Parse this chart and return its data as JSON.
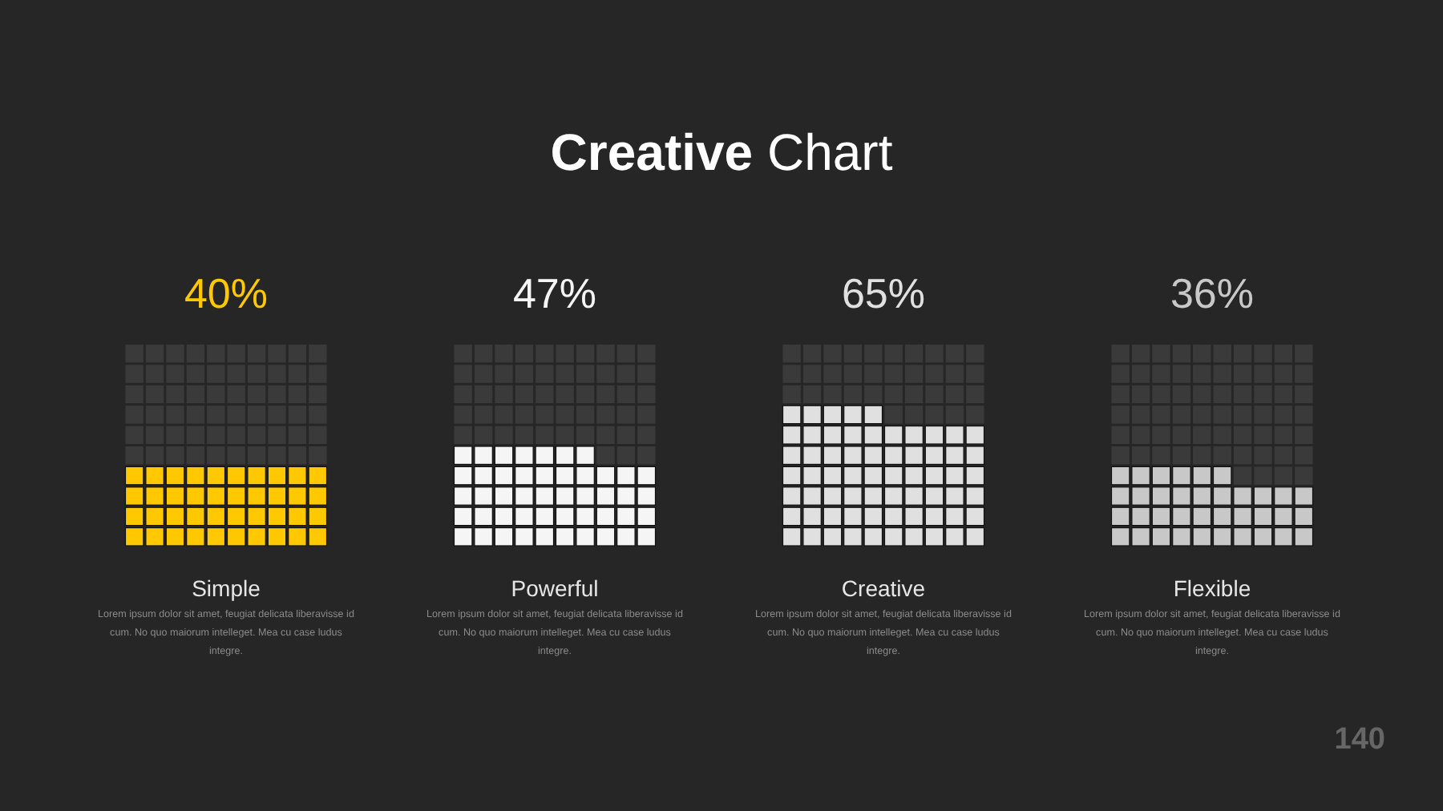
{
  "chart_data": {
    "type": "other",
    "title": "Creative Chart",
    "categories": [
      "Simple",
      "Powerful",
      "Creative",
      "Flexible"
    ],
    "values": [
      40,
      47,
      65,
      36
    ],
    "colors": [
      "#ffc800",
      "#f5f5f5",
      "#e0e0e0",
      "#c8c8c8"
    ],
    "value_labels": [
      "40%",
      "47%",
      "65%",
      "36%"
    ],
    "annotations": [
      "Lorem ipsum dolor sit amet, feugiat delicata liberavisse id cum. No quo maiorum intelleget. Mea cu case ludus integre.",
      "Lorem ipsum dolor sit amet, feugiat delicata liberavisse id cum. No quo maiorum intelleget. Mea cu case ludus integre.",
      "Lorem ipsum dolor sit amet, feugiat delicata liberavisse id cum. No quo maiorum intelleget. Mea cu case ludus integre.",
      "Lorem ipsum dolor sit amet, feugiat delicata liberavisse id cum. No quo maiorum intelleget. Mea cu case ludus integre.",
      "140"
    ]
  }
}
